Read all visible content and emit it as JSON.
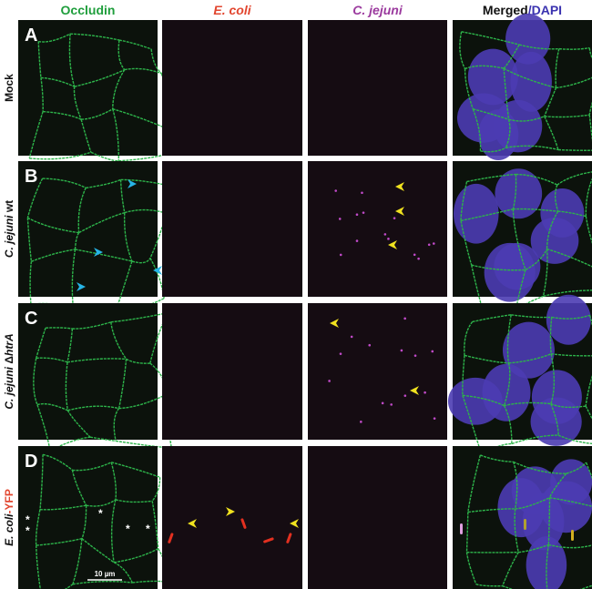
{
  "columns": [
    [
      {
        "text": "Occludin",
        "color": "#1f9e3c",
        "italic": false
      }
    ],
    [
      {
        "text": "E. coli",
        "color": "#e2462f",
        "italic": true
      }
    ],
    [
      {
        "text": "C. jejuni",
        "color": "#9b3a9e",
        "italic": true
      }
    ],
    [
      {
        "text": "Merged",
        "color": "#111111",
        "italic": false
      },
      {
        "text": "/DAPI",
        "color": "#3b33b0",
        "italic": false
      }
    ]
  ],
  "rows": [
    {
      "letter": "A",
      "label": [
        {
          "text": "Mock",
          "color": "#111111",
          "italic": false
        }
      ]
    },
    {
      "letter": "B",
      "label": [
        {
          "text": "C. jejuni",
          "color": "#111111",
          "italic": true
        },
        {
          "text": " wt",
          "color": "#111111",
          "italic": false
        }
      ]
    },
    {
      "letter": "C",
      "label": [
        {
          "text": "C. jejuni",
          "color": "#111111",
          "italic": true
        },
        {
          "text": " Δ",
          "color": "#111111",
          "italic": false
        },
        {
          "text": "htrA",
          "color": "#111111",
          "italic": true
        }
      ]
    },
    {
      "letter": "D",
      "label": [
        {
          "text": "E. coli",
          "color": "#111111",
          "italic": true
        },
        {
          "text": "-YFP",
          "color": "#e2462f",
          "italic": false
        }
      ]
    }
  ],
  "scale_bar": "10 µm",
  "asterisks": [
    "*",
    "*",
    "*",
    "*",
    "*"
  ]
}
